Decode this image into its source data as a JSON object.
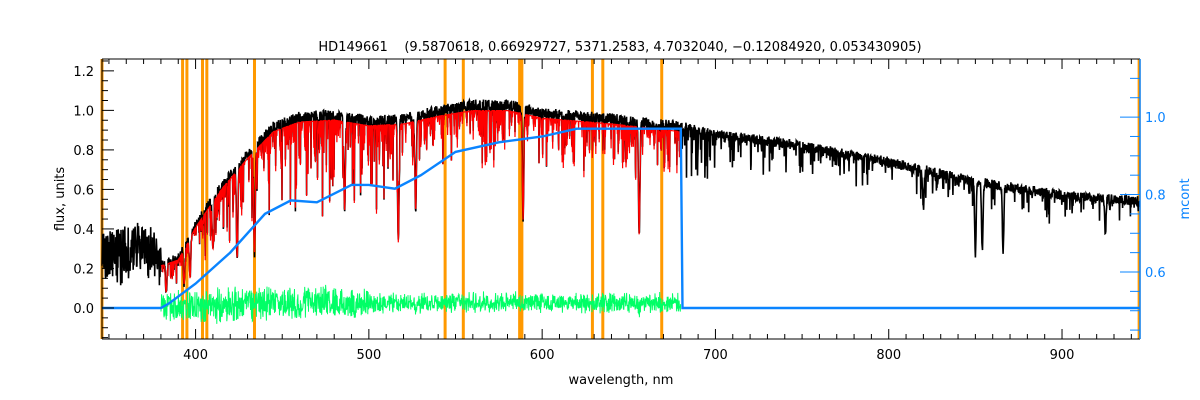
{
  "chart_data": {
    "type": "line",
    "title": "HD149661    (9.5870618, 0.66929727, 5371.2583, 4.7032040, −0.12084920, 0.053430905)",
    "xlabel": "wavelength, nm",
    "ylabel": "flux, units",
    "y2label": "mcont",
    "xlim": [
      346,
      945
    ],
    "ylim": [
      -0.157,
      1.26
    ],
    "y2lim": [
      0.427,
      1.15
    ],
    "x_ticks": [
      400,
      500,
      600,
      700,
      800,
      900
    ],
    "x_tick_labels": [
      "400",
      "500",
      "600",
      "700",
      "800",
      "900"
    ],
    "y_ticks": [
      0.0,
      0.2,
      0.4,
      0.6,
      0.8,
      1.0,
      1.2
    ],
    "y_tick_labels": [
      "0.0",
      "0.2",
      "0.4",
      "0.6",
      "0.8",
      "1.0",
      "1.2"
    ],
    "y2_ticks": [
      0.6,
      0.8,
      1.0
    ],
    "y2_tick_labels": [
      "0.6",
      "0.8",
      "1.0"
    ],
    "colors": {
      "observed": "#000000",
      "model": "#ff0000",
      "residual": "#00ff66",
      "mcont": "#0a84ff",
      "masks": "#ff9900",
      "axis2": "#0a84ff"
    },
    "series": [
      {
        "name": "observed flux",
        "range": [
          346,
          945
        ],
        "envelope": [
          [
            346,
            0.26
          ],
          [
            360,
            0.3
          ],
          [
            372,
            0.32
          ],
          [
            380,
            0.22
          ],
          [
            390,
            0.25
          ],
          [
            400,
            0.42
          ],
          [
            415,
            0.62
          ],
          [
            430,
            0.78
          ],
          [
            445,
            0.92
          ],
          [
            460,
            0.97
          ],
          [
            480,
            0.98
          ],
          [
            500,
            0.95
          ],
          [
            520,
            0.96
          ],
          [
            540,
            1.0
          ],
          [
            560,
            1.03
          ],
          [
            580,
            1.03
          ],
          [
            600,
            0.99
          ],
          [
            640,
            0.96
          ],
          [
            680,
            0.92
          ],
          [
            700,
            0.88
          ],
          [
            750,
            0.82
          ],
          [
            800,
            0.74
          ],
          [
            850,
            0.64
          ],
          [
            900,
            0.57
          ],
          [
            945,
            0.54
          ]
        ],
        "absorption_lines": [
          [
            383,
            0.08
          ],
          [
            393.4,
            0.12
          ],
          [
            396.8,
            0.15
          ],
          [
            410,
            0.3
          ],
          [
            424,
            0.25
          ],
          [
            434,
            0.28
          ],
          [
            486,
            0.5
          ],
          [
            517,
            0.33
          ],
          [
            527,
            0.5
          ],
          [
            589,
            0.45
          ],
          [
            656,
            0.37
          ],
          [
            820,
            0.5
          ],
          [
            850,
            0.27
          ],
          [
            854,
            0.3
          ],
          [
            866,
            0.28
          ],
          [
            925,
            0.38
          ]
        ]
      },
      {
        "name": "model fit",
        "range": [
          380,
          680
        ]
      },
      {
        "name": "residual",
        "range": [
          380,
          680
        ],
        "noise": 0.07
      },
      {
        "name": "mcont",
        "axis": "right",
        "points": [
          [
            346,
            0.507
          ],
          [
            380,
            0.507
          ],
          [
            385,
            0.52
          ],
          [
            400,
            0.57
          ],
          [
            420,
            0.65
          ],
          [
            440,
            0.75
          ],
          [
            455,
            0.785
          ],
          [
            470,
            0.78
          ],
          [
            490,
            0.825
          ],
          [
            500,
            0.825
          ],
          [
            515,
            0.815
          ],
          [
            530,
            0.85
          ],
          [
            550,
            0.91
          ],
          [
            575,
            0.935
          ],
          [
            600,
            0.95
          ],
          [
            620,
            0.97
          ],
          [
            640,
            0.97
          ],
          [
            680,
            0.97
          ],
          [
            681,
            0.507
          ],
          [
            945,
            0.507
          ]
        ]
      }
    ],
    "mask_lines_nm": [
      346,
      392.5,
      395,
      404,
      406.5,
      434,
      544,
      554.5,
      587,
      588.3,
      629,
      635,
      669,
      944.5
    ]
  }
}
